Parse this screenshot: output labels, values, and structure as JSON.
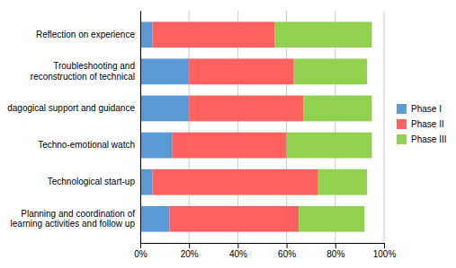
{
  "chart_data": {
    "type": "bar",
    "orientation": "horizontal",
    "stacked": true,
    "categories": [
      "Planning and coordination of\nlearning activities and follow up",
      "Technological start-up",
      "Techno-emotional watch",
      "dagogical support and guidance",
      "Troubleshooting and\nreconstruction of technical",
      "Reflection on experience"
    ],
    "series": [
      {
        "name": "Phase I",
        "color": "#5B9BD5",
        "values": [
          12,
          5,
          13,
          20,
          20,
          5
        ]
      },
      {
        "name": "Phase II",
        "color": "#FF6060",
        "values": [
          53,
          68,
          47,
          47,
          43,
          50
        ]
      },
      {
        "name": "Phase III",
        "color": "#92D050",
        "values": [
          27,
          20,
          35,
          28,
          30,
          40
        ]
      }
    ],
    "xlim": [
      0,
      100
    ],
    "xticks": [
      {
        "value": 0,
        "label": "0%"
      },
      {
        "value": 20,
        "label": "20%"
      },
      {
        "value": 40,
        "label": "40%"
      },
      {
        "value": 60,
        "label": "60%"
      },
      {
        "value": 80,
        "label": "80%"
      },
      {
        "value": 100,
        "label": "100%"
      }
    ],
    "grid": true,
    "legend": "right"
  }
}
